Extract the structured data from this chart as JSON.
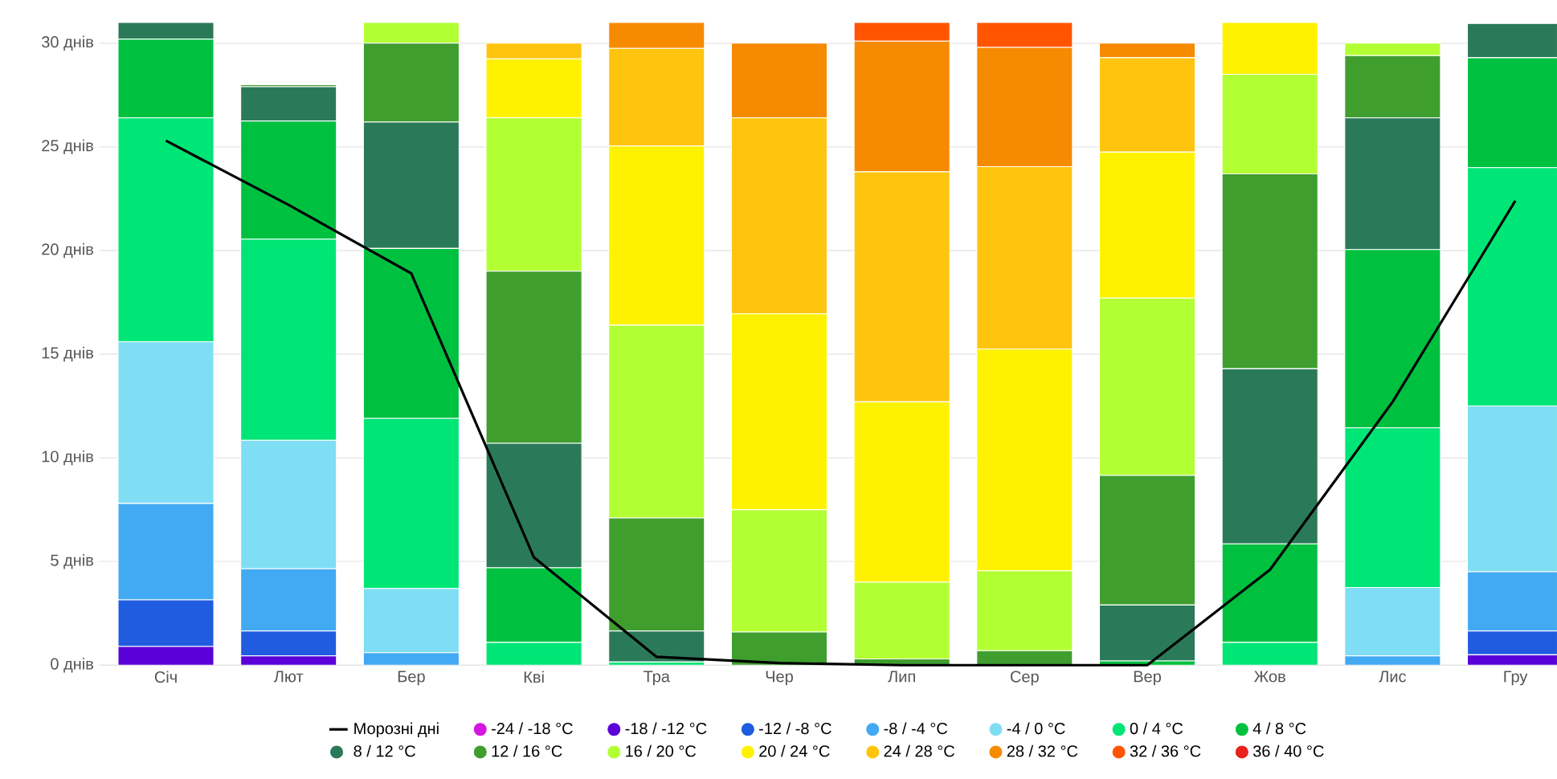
{
  "chart_data": {
    "type": "bar",
    "stacked": true,
    "grid": "y",
    "legend": "bottom",
    "categories": [
      "Січ",
      "Лют",
      "Бер",
      "Кві",
      "Тра",
      "Чер",
      "Лип",
      "Сер",
      "Вер",
      "Жов",
      "Лис",
      "Гру"
    ],
    "ylim": [
      0,
      31
    ],
    "yticks": [
      {
        "value": 0,
        "label": "0 днів"
      },
      {
        "value": 5,
        "label": "5 днів"
      },
      {
        "value": 10,
        "label": "10 днів"
      },
      {
        "value": 15,
        "label": "15 днів"
      },
      {
        "value": 20,
        "label": "20 днів"
      },
      {
        "value": 25,
        "label": "25 днів"
      },
      {
        "value": 30,
        "label": "30 днів"
      }
    ],
    "series": [
      {
        "name": "Морозні дні",
        "type": "line",
        "color": "#000000",
        "values": [
          25.3,
          22.2,
          18.9,
          5.2,
          0.4,
          0.1,
          0,
          0,
          0,
          4.6,
          12.7,
          22.4
        ]
      },
      {
        "name": "-24 / -18 °C",
        "color": "#d516e0",
        "values": [
          0,
          0,
          0,
          0,
          0,
          0,
          0,
          0,
          0,
          0,
          0,
          0
        ]
      },
      {
        "name": "-18 / -12 °C",
        "color": "#5a00d8",
        "values": [
          0.9,
          0.45,
          0,
          0,
          0,
          0,
          0,
          0,
          0,
          0,
          0,
          0.5
        ]
      },
      {
        "name": "-12 / -8 °C",
        "color": "#1f5ce0",
        "values": [
          2.25,
          1.2,
          0,
          0,
          0,
          0,
          0,
          0,
          0,
          0,
          0,
          1.15
        ]
      },
      {
        "name": "-8 / -4 °C",
        "color": "#42aaf2",
        "values": [
          4.65,
          3.0,
          0.6,
          0,
          0,
          0,
          0,
          0,
          0,
          0,
          0.45,
          2.85
        ]
      },
      {
        "name": "-4 / 0 °C",
        "color": "#80def4",
        "values": [
          7.8,
          6.2,
          3.1,
          0,
          0,
          0,
          0,
          0,
          0,
          0,
          3.3,
          8.0
        ]
      },
      {
        "name": "0 / 4 °C",
        "color": "#00e676",
        "values": [
          10.8,
          9.7,
          8.2,
          1.1,
          0.15,
          0,
          0,
          0,
          0,
          1.1,
          7.7,
          11.5
        ]
      },
      {
        "name": "4 / 8 °C",
        "color": "#00c040",
        "values": [
          3.8,
          5.7,
          8.2,
          3.6,
          0,
          0,
          0,
          0,
          0.2,
          4.75,
          8.6,
          5.3
        ]
      },
      {
        "name": "8 / 12 °C",
        "color": "#2a7a5a",
        "values": [
          0.8,
          1.65,
          6.1,
          6.0,
          1.5,
          0,
          0,
          0,
          2.7,
          8.45,
          6.35,
          1.65
        ]
      },
      {
        "name": "12 / 16 °C",
        "color": "#3f9e2e",
        "values": [
          0,
          0.1,
          3.8,
          8.3,
          5.45,
          1.6,
          0.3,
          0.7,
          6.25,
          9.4,
          3.0,
          0
        ]
      },
      {
        "name": "16 / 20 °C",
        "color": "#b2ff33",
        "values": [
          0,
          0,
          1.0,
          7.4,
          9.3,
          5.9,
          3.7,
          3.85,
          8.55,
          4.8,
          0.6,
          0
        ]
      },
      {
        "name": "20 / 24 °C",
        "color": "#fff200",
        "values": [
          0,
          0,
          0,
          2.85,
          8.65,
          9.45,
          8.7,
          10.7,
          7.05,
          2.5,
          0,
          0
        ]
      },
      {
        "name": "24 / 28 °C",
        "color": "#ffc40d",
        "values": [
          0,
          0,
          0,
          0.75,
          4.7,
          9.45,
          11.1,
          8.8,
          4.55,
          0,
          0,
          0
        ]
      },
      {
        "name": "28 / 32 °C",
        "color": "#f68a00",
        "values": [
          0,
          0,
          0,
          0,
          1.25,
          3.6,
          6.3,
          5.75,
          0.7,
          0,
          0,
          0
        ]
      },
      {
        "name": "32 / 36 °C",
        "color": "#ff5500",
        "values": [
          0,
          0,
          0,
          0,
          0,
          0,
          0.9,
          1.2,
          0,
          0,
          0,
          0
        ]
      },
      {
        "name": "36 / 40 °C",
        "color": "#e8231f",
        "values": [
          0,
          0,
          0,
          0,
          0,
          0,
          0,
          0,
          0,
          0,
          0,
          0
        ]
      }
    ]
  }
}
